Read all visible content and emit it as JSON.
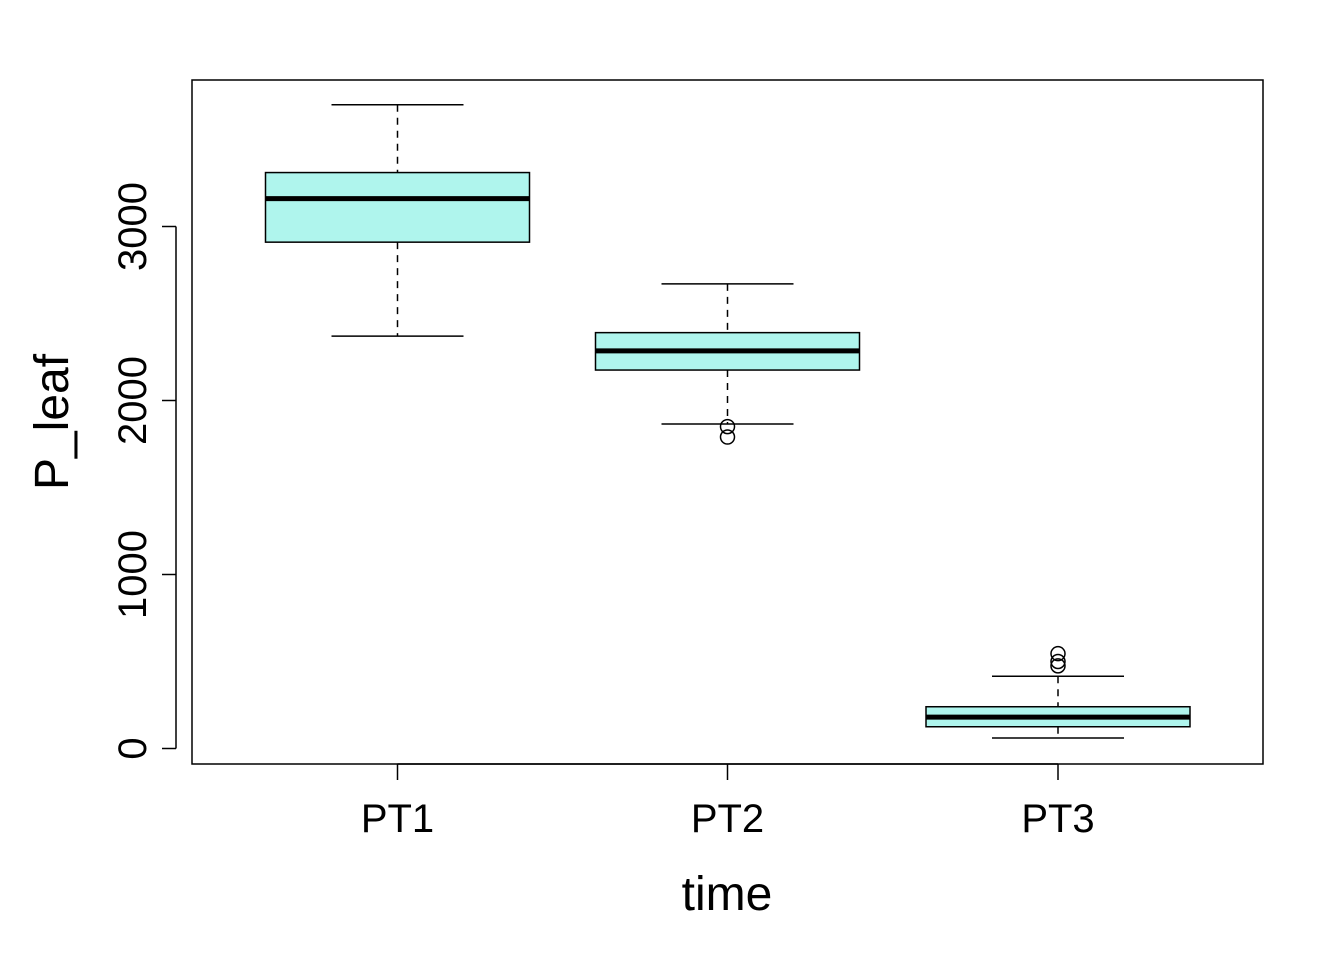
{
  "chart_data": {
    "type": "box",
    "title": "",
    "xlabel": "time",
    "ylabel": "P_leaf",
    "ylim": [
      -90,
      3850
    ],
    "yticks": [
      0,
      1000,
      2000,
      3000
    ],
    "grid": false,
    "categories": [
      "PT1",
      "PT2",
      "PT3"
    ],
    "boxes": [
      {
        "category": "PT1",
        "whisker_low": 2370,
        "q1": 2910,
        "median": 3160,
        "q3": 3310,
        "whisker_high": 3700,
        "outliers": []
      },
      {
        "category": "PT2",
        "whisker_low": 1865,
        "q1": 2175,
        "median": 2285,
        "q3": 2390,
        "whisker_high": 2670,
        "outliers": [
          1850,
          1790
        ]
      },
      {
        "category": "PT3",
        "whisker_low": 60,
        "q1": 125,
        "median": 180,
        "q3": 240,
        "whisker_high": 415,
        "outliers": [
          545,
          500,
          475
        ]
      }
    ],
    "colors": {
      "box_fill": "#aff5ed",
      "stroke": "#000000"
    }
  }
}
